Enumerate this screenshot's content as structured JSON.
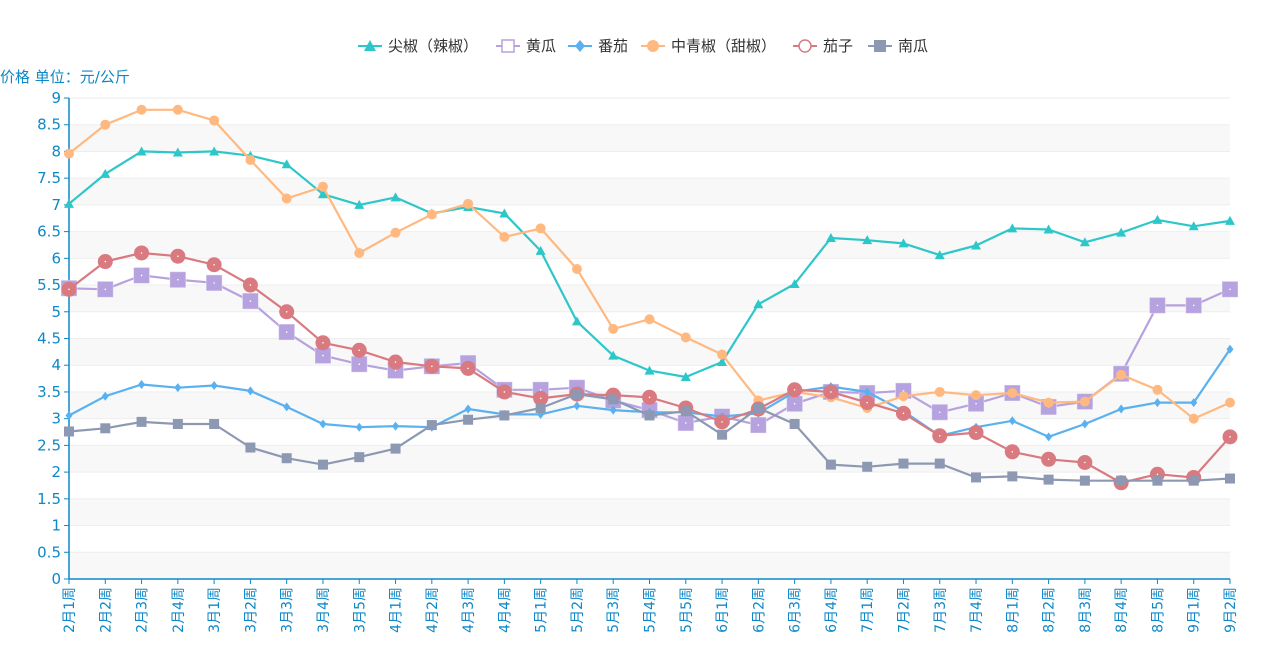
{
  "chart_data": {
    "type": "line",
    "title": "",
    "ylabel": "价格 单位：元/公斤",
    "xlabel": "",
    "ylim": [
      0,
      9
    ],
    "y_ticks": [
      "0",
      "0.5",
      "1",
      "1.5",
      "2",
      "2.5",
      "3",
      "3.5",
      "4",
      "4.5",
      "5",
      "5.5",
      "6",
      "6.5",
      "7",
      "7.5",
      "8",
      "8.5",
      "9"
    ],
    "grid": true,
    "legend_position": "top-center",
    "categories": [
      "2月1周",
      "2月2周",
      "2月3周",
      "2月4周",
      "3月1周",
      "3月2周",
      "3月3周",
      "3月4周",
      "3月5周",
      "4月1周",
      "4月2周",
      "4月3周",
      "4月4周",
      "5月1周",
      "5月2周",
      "5月3周",
      "5月4周",
      "5月5周",
      "6月1周",
      "6月2周",
      "6月3周",
      "6月4周",
      "7月1周",
      "7月2周",
      "7月3周",
      "7月4周",
      "8月1周",
      "8月2周",
      "8月3周",
      "8月4周",
      "8月5周",
      "9月1周",
      "9月2周"
    ],
    "series": [
      {
        "name": "尖椒（辣椒）",
        "color": "#2ec7c9",
        "symbol": "triangle",
        "values": [
          7.02,
          7.58,
          8.0,
          7.98,
          8.0,
          7.92,
          7.76,
          7.2,
          7.0,
          7.14,
          6.84,
          6.96,
          6.84,
          6.14,
          4.82,
          4.18,
          3.9,
          3.78,
          4.06,
          5.14,
          5.52,
          6.38,
          6.34,
          6.28,
          6.06,
          6.24,
          6.56,
          6.54,
          6.3,
          6.48,
          6.72,
          6.6,
          6.7
        ]
      },
      {
        "name": "黄瓜",
        "color": "#b6a2de",
        "symbol": "square-large",
        "values": [
          5.44,
          5.42,
          5.68,
          5.6,
          5.54,
          5.2,
          4.62,
          4.18,
          4.02,
          3.9,
          3.98,
          4.04,
          3.54,
          3.54,
          3.58,
          3.34,
          3.16,
          2.92,
          3.04,
          2.88,
          3.28,
          3.5,
          3.48,
          3.52,
          3.12,
          3.28,
          3.48,
          3.22,
          3.32,
          3.84,
          5.12,
          5.12,
          5.42
        ]
      },
      {
        "name": "番茄",
        "color": "#5ab1ef",
        "symbol": "diamond",
        "values": [
          3.06,
          3.42,
          3.64,
          3.58,
          3.62,
          3.52,
          3.22,
          2.9,
          2.84,
          2.86,
          2.84,
          3.18,
          3.08,
          3.08,
          3.24,
          3.16,
          3.12,
          3.12,
          3.04,
          3.1,
          3.5,
          3.6,
          3.5,
          3.14,
          2.68,
          2.84,
          2.96,
          2.66,
          2.9,
          3.18,
          3.3,
          3.3,
          4.3
        ]
      },
      {
        "name": "中青椒（甜椒）",
        "color": "#ffb980",
        "symbol": "circle-small",
        "values": [
          7.96,
          8.5,
          8.78,
          8.78,
          8.58,
          7.84,
          7.12,
          7.34,
          6.1,
          6.48,
          6.82,
          7.02,
          6.4,
          6.56,
          5.8,
          4.68,
          4.86,
          4.52,
          4.2,
          3.34,
          3.5,
          3.4,
          3.2,
          3.42,
          3.5,
          3.44,
          3.48,
          3.3,
          3.32,
          3.82,
          3.54,
          3.0,
          3.3
        ]
      },
      {
        "name": "茄子",
        "color": "#d87a80",
        "symbol": "circle-large",
        "values": [
          5.42,
          5.94,
          6.1,
          6.04,
          5.88,
          5.5,
          5.0,
          4.42,
          4.28,
          4.06,
          3.98,
          3.94,
          3.5,
          3.38,
          3.46,
          3.44,
          3.4,
          3.2,
          2.94,
          3.18,
          3.54,
          3.5,
          3.3,
          3.1,
          2.68,
          2.74,
          2.38,
          2.24,
          2.18,
          1.8,
          1.96,
          1.9,
          2.66
        ]
      },
      {
        "name": "南瓜",
        "color": "#8d98b3",
        "symbol": "square",
        "values": [
          2.76,
          2.82,
          2.94,
          2.9,
          2.9,
          2.46,
          2.26,
          2.14,
          2.28,
          2.44,
          2.88,
          2.98,
          3.06,
          3.2,
          3.46,
          3.36,
          3.06,
          3.14,
          2.7,
          3.2,
          2.9,
          2.14,
          2.1,
          2.16,
          2.16,
          1.9,
          1.92,
          1.86,
          1.84,
          1.84,
          1.84,
          1.84,
          1.88
        ]
      }
    ],
    "axis_color": "#0e88c8",
    "grid_color": "#eeeeee",
    "band_color": "#f8f8f8"
  }
}
